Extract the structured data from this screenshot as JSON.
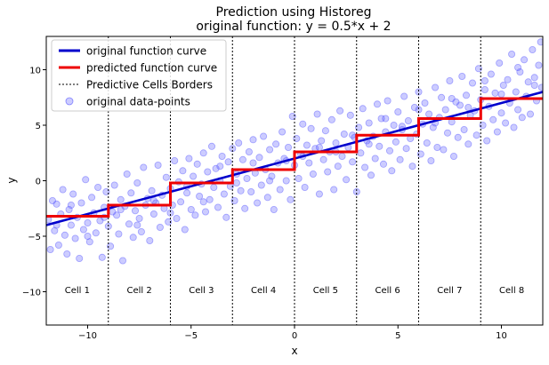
{
  "chart_data": {
    "type": "scatter",
    "title": "Prediction using Historeg",
    "subtitle": "original function: y = 0.5*x + 2",
    "xlabel": "x",
    "ylabel": "y",
    "xlim": [
      -12,
      12
    ],
    "ylim": [
      -13,
      13
    ],
    "xticks": [
      -10,
      -5,
      0,
      5,
      10
    ],
    "yticks": [
      -10,
      -5,
      0,
      5,
      10
    ],
    "xtick_labels": [
      "−10",
      "−5",
      "0",
      "5",
      "10"
    ],
    "ytick_labels": [
      "−10",
      "−5",
      "0",
      "5",
      "10"
    ],
    "grid": false,
    "legend_position": "top-left",
    "legend": [
      {
        "label": "original function curve",
        "kind": "line",
        "color": "#0000cc"
      },
      {
        "label": "predicted function curve",
        "kind": "line",
        "color": "#ee0000"
      },
      {
        "label": "Predictive Cells Borders",
        "kind": "dashed",
        "color": "#000000"
      },
      {
        "label": "original data-points",
        "kind": "marker",
        "color": "#8080ff"
      }
    ],
    "original_function": {
      "slope": 0.5,
      "intercept": 2,
      "color": "#0000cc"
    },
    "cell_borders": [
      -9,
      -6,
      -3,
      0,
      3,
      6,
      9
    ],
    "cells": [
      {
        "label": "Cell 1",
        "x": -10.5
      },
      {
        "label": "Cell 2",
        "x": -7.5
      },
      {
        "label": "Cell 3",
        "x": -4.5
      },
      {
        "label": "Cell 4",
        "x": -1.5
      },
      {
        "label": "Cell 5",
        "x": 1.5
      },
      {
        "label": "Cell 6",
        "x": 4.5
      },
      {
        "label": "Cell 7",
        "x": 7.5
      },
      {
        "label": "Cell 8",
        "x": 10.5
      }
    ],
    "cell_label_y": -9.8,
    "predicted_steps": [
      {
        "x0": -12,
        "x1": -9,
        "y": -3.2
      },
      {
        "x0": -9,
        "x1": -6,
        "y": -2.2
      },
      {
        "x0": -6,
        "x1": -3,
        "y": -0.2
      },
      {
        "x0": -3,
        "x1": 0,
        "y": 1.0
      },
      {
        "x0": 0,
        "x1": 3,
        "y": 2.6
      },
      {
        "x0": 3,
        "x1": 6,
        "y": 4.1
      },
      {
        "x0": 6,
        "x1": 9,
        "y": 5.6
      },
      {
        "x0": 9,
        "x1": 12,
        "y": 7.4
      }
    ],
    "predicted_color": "#ee0000",
    "points_color": "#6060ff",
    "points": [
      [
        -11.9,
        -3.5
      ],
      [
        -11.8,
        -6.2
      ],
      [
        -11.7,
        -1.8
      ],
      [
        -11.6,
        -4.5
      ],
      [
        -11.5,
        -2.1
      ],
      [
        -11.4,
        -5.8
      ],
      [
        -11.3,
        -3.0
      ],
      [
        -11.2,
        -0.8
      ],
      [
        -11.1,
        -4.9
      ],
      [
        -11.0,
        -6.6
      ],
      [
        -10.9,
        -2.6
      ],
      [
        -10.8,
        -4.0
      ],
      [
        -10.7,
        -1.2
      ],
      [
        -10.6,
        -5.2
      ],
      [
        -10.5,
        -3.3
      ],
      [
        -10.4,
        -7.0
      ],
      [
        -10.3,
        -2.0
      ],
      [
        -10.2,
        -4.4
      ],
      [
        -10.1,
        0.1
      ],
      [
        -10.0,
        -3.8
      ],
      [
        -9.9,
        -5.5
      ],
      [
        -9.8,
        -1.5
      ],
      [
        -9.7,
        -2.9
      ],
      [
        -9.6,
        -4.7
      ],
      [
        -9.5,
        -0.6
      ],
      [
        -9.4,
        -3.6
      ],
      [
        -9.3,
        -6.9
      ],
      [
        -9.2,
        -2.4
      ],
      [
        -9.1,
        -1.0
      ],
      [
        -9.0,
        -4.1
      ],
      [
        -8.9,
        -5.9
      ],
      [
        -8.8,
        -2.8
      ],
      [
        -8.7,
        -0.4
      ],
      [
        -8.6,
        -3.1
      ],
      [
        -8.5,
        -4.8
      ],
      [
        -8.4,
        -1.7
      ],
      [
        -8.3,
        -7.2
      ],
      [
        -8.2,
        -2.3
      ],
      [
        -8.1,
        0.6
      ],
      [
        -8.0,
        -3.9
      ],
      [
        -7.9,
        -1.1
      ],
      [
        -7.8,
        -5.1
      ],
      [
        -7.7,
        -2.7
      ],
      [
        -7.6,
        -0.2
      ],
      [
        -7.5,
        -3.4
      ],
      [
        -7.4,
        -4.6
      ],
      [
        -7.3,
        1.2
      ],
      [
        -7.2,
        -2.2
      ],
      [
        -7.1,
        -1.6
      ],
      [
        -7.0,
        -5.4
      ],
      [
        -6.9,
        -0.9
      ],
      [
        -6.8,
        -3.0
      ],
      [
        -6.7,
        -2.0
      ],
      [
        -6.6,
        1.4
      ],
      [
        -6.5,
        -4.2
      ],
      [
        -6.4,
        -1.3
      ],
      [
        -6.3,
        -2.5
      ],
      [
        -6.2,
        0.3
      ],
      [
        -6.1,
        -3.7
      ],
      [
        -6.0,
        -0.7
      ],
      [
        -5.9,
        -2.2
      ],
      [
        -5.8,
        1.8
      ],
      [
        -5.7,
        -3.4
      ],
      [
        -5.6,
        -0.1
      ],
      [
        -5.5,
        -1.9
      ],
      [
        -5.4,
        0.9
      ],
      [
        -5.3,
        -4.4
      ],
      [
        -5.2,
        -1.1
      ],
      [
        -5.1,
        2.0
      ],
      [
        -5.0,
        -2.6
      ],
      [
        -4.9,
        0.4
      ],
      [
        -4.8,
        -3.1
      ],
      [
        -4.7,
        1.5
      ],
      [
        -4.6,
        -1.4
      ],
      [
        -4.5,
        -0.3
      ],
      [
        -4.4,
        2.5
      ],
      [
        -4.3,
        -2.8
      ],
      [
        -4.2,
        0.8
      ],
      [
        -4.1,
        -1.7
      ],
      [
        -4.0,
        3.1
      ],
      [
        -3.9,
        -0.6
      ],
      [
        -3.8,
        1.1
      ],
      [
        -3.7,
        -2.4
      ],
      [
        -3.6,
        0.0
      ],
      [
        -3.5,
        2.2
      ],
      [
        -3.4,
        -1.2
      ],
      [
        -3.3,
        -3.3
      ],
      [
        -3.2,
        1.7
      ],
      [
        -3.1,
        -0.5
      ],
      [
        -3.0,
        2.9
      ],
      [
        -2.9,
        -1.8
      ],
      [
        -2.8,
        0.6
      ],
      [
        -2.7,
        3.4
      ],
      [
        -2.6,
        -0.9
      ],
      [
        -2.5,
        1.9
      ],
      [
        -2.4,
        -2.5
      ],
      [
        -2.3,
        0.2
      ],
      [
        -2.2,
        2.6
      ],
      [
        -2.1,
        -1.0
      ],
      [
        -2.0,
        3.7
      ],
      [
        -1.9,
        0.7
      ],
      [
        -1.8,
        -2.0
      ],
      [
        -1.7,
        2.1
      ],
      [
        -1.6,
        -0.4
      ],
      [
        -1.5,
        4.0
      ],
      [
        -1.4,
        1.0
      ],
      [
        -1.3,
        -1.5
      ],
      [
        -1.2,
        2.8
      ],
      [
        -1.1,
        0.4
      ],
      [
        -1.0,
        -2.6
      ],
      [
        -0.9,
        3.3
      ],
      [
        -0.8,
        1.6
      ],
      [
        -0.7,
        -0.8
      ],
      [
        -0.6,
        4.4
      ],
      [
        -0.5,
        2.0
      ],
      [
        -0.4,
        0.0
      ],
      [
        -0.3,
        3.0
      ],
      [
        -0.2,
        -1.7
      ],
      [
        -0.1,
        5.8
      ],
      [
        0.0,
        1.4
      ],
      [
        0.1,
        3.8
      ],
      [
        0.2,
        0.2
      ],
      [
        0.3,
        2.4
      ],
      [
        0.4,
        5.1
      ],
      [
        0.5,
        -0.6
      ],
      [
        0.6,
        3.2
      ],
      [
        0.7,
        1.6
      ],
      [
        0.8,
        4.7
      ],
      [
        0.9,
        0.6
      ],
      [
        1.0,
        2.9
      ],
      [
        1.1,
        6.0
      ],
      [
        1.2,
        -1.2
      ],
      [
        1.3,
        3.6
      ],
      [
        1.4,
        1.9
      ],
      [
        1.5,
        4.5
      ],
      [
        1.6,
        0.8
      ],
      [
        1.7,
        2.6
      ],
      [
        1.8,
        5.5
      ],
      [
        1.9,
        -0.8
      ],
      [
        2.0,
        3.4
      ],
      [
        2.1,
        1.3
      ],
      [
        2.2,
        6.3
      ],
      [
        2.3,
        2.2
      ],
      [
        2.4,
        4.2
      ],
      [
        2.5,
        0.1
      ],
      [
        2.6,
        3.0
      ],
      [
        2.7,
        5.9
      ],
      [
        2.8,
        1.7
      ],
      [
        2.9,
        3.9
      ],
      [
        3.0,
        -1.0
      ],
      [
        3.1,
        4.8
      ],
      [
        3.2,
        2.5
      ],
      [
        3.3,
        6.5
      ],
      [
        3.4,
        1.2
      ],
      [
        3.5,
        3.6
      ],
      [
        3.6,
        5.2
      ],
      [
        3.7,
        0.5
      ],
      [
        3.8,
        4.0
      ],
      [
        3.9,
        2.0
      ],
      [
        4.0,
        6.9
      ],
      [
        4.1,
        3.1
      ],
      [
        4.2,
        5.6
      ],
      [
        4.3,
        1.5
      ],
      [
        4.4,
        4.4
      ],
      [
        4.5,
        7.2
      ],
      [
        4.6,
        2.7
      ],
      [
        4.7,
        0.9
      ],
      [
        4.8,
        5.0
      ],
      [
        4.9,
        3.5
      ],
      [
        5.0,
        6.2
      ],
      [
        5.1,
        1.9
      ],
      [
        5.2,
        4.6
      ],
      [
        5.3,
        7.6
      ],
      [
        5.4,
        2.9
      ],
      [
        5.5,
        5.4
      ],
      [
        5.6,
        3.8
      ],
      [
        5.7,
        1.3
      ],
      [
        5.8,
        6.6
      ],
      [
        5.9,
        4.2
      ],
      [
        6.0,
        8.0
      ],
      [
        6.1,
        2.4
      ],
      [
        6.2,
        5.1
      ],
      [
        6.3,
        7.0
      ],
      [
        6.4,
        3.4
      ],
      [
        6.5,
        6.0
      ],
      [
        6.6,
        1.8
      ],
      [
        6.7,
        4.8
      ],
      [
        6.8,
        8.4
      ],
      [
        6.9,
        3.0
      ],
      [
        7.0,
        5.7
      ],
      [
        7.1,
        7.5
      ],
      [
        7.2,
        2.8
      ],
      [
        7.3,
        6.4
      ],
      [
        7.4,
        4.3
      ],
      [
        7.5,
        9.0
      ],
      [
        7.6,
        5.3
      ],
      [
        7.7,
        2.2
      ],
      [
        7.8,
        7.1
      ],
      [
        7.9,
        3.9
      ],
      [
        8.0,
        6.8
      ],
      [
        8.1,
        9.4
      ],
      [
        8.2,
        4.6
      ],
      [
        8.3,
        7.7
      ],
      [
        8.4,
        3.3
      ],
      [
        8.5,
        5.9
      ],
      [
        8.6,
        8.8
      ],
      [
        8.7,
        6.3
      ],
      [
        8.8,
        4.1
      ],
      [
        8.9,
        10.1
      ],
      [
        9.0,
        7.3
      ],
      [
        9.1,
        5.0
      ],
      [
        9.2,
        8.2
      ],
      [
        9.3,
        3.6
      ],
      [
        9.4,
        6.7
      ],
      [
        9.5,
        9.6
      ],
      [
        9.6,
        5.5
      ],
      [
        9.7,
        7.9
      ],
      [
        9.8,
        4.4
      ],
      [
        9.9,
        10.6
      ],
      [
        10.0,
        6.1
      ],
      [
        10.1,
        8.6
      ],
      [
        10.2,
        5.2
      ],
      [
        10.3,
        9.1
      ],
      [
        10.4,
        7.0
      ],
      [
        10.5,
        11.4
      ],
      [
        10.6,
        4.8
      ],
      [
        10.7,
        8.0
      ],
      [
        10.8,
        6.4
      ],
      [
        10.9,
        9.8
      ],
      [
        11.0,
        5.7
      ],
      [
        11.1,
        10.9
      ],
      [
        11.2,
        7.6
      ],
      [
        11.3,
        8.9
      ],
      [
        11.4,
        6.0
      ],
      [
        11.5,
        11.8
      ],
      [
        11.6,
        9.3
      ],
      [
        11.7,
        7.2
      ],
      [
        11.8,
        10.4
      ],
      [
        11.9,
        12.5
      ],
      [
        11.95,
        8.4
      ],
      [
        -11.5,
        -4.0
      ],
      [
        -10.8,
        -2.2
      ],
      [
        -10.0,
        -5.0
      ],
      [
        -9.2,
        -3.3
      ],
      [
        -8.4,
        -2.6
      ],
      [
        -7.6,
        -4.0
      ],
      [
        -6.8,
        -1.8
      ],
      [
        -6.0,
        -2.9
      ],
      [
        -5.2,
        -0.5
      ],
      [
        -4.4,
        -1.9
      ],
      [
        -3.6,
        1.3
      ],
      [
        -2.8,
        -0.2
      ],
      [
        -2.0,
        1.6
      ],
      [
        -1.2,
        0.0
      ],
      [
        -0.4,
        1.8
      ],
      [
        0.4,
        2.2
      ],
      [
        1.2,
        3.0
      ],
      [
        2.0,
        2.6
      ],
      [
        2.8,
        4.1
      ],
      [
        3.6,
        3.3
      ],
      [
        4.4,
        5.6
      ],
      [
        5.2,
        4.9
      ],
      [
        6.0,
        6.4
      ],
      [
        6.8,
        5.2
      ],
      [
        7.6,
        7.4
      ],
      [
        8.4,
        6.6
      ],
      [
        9.2,
        9.0
      ],
      [
        10.0,
        7.8
      ],
      [
        10.8,
        10.2
      ],
      [
        11.6,
        8.6
      ]
    ]
  }
}
